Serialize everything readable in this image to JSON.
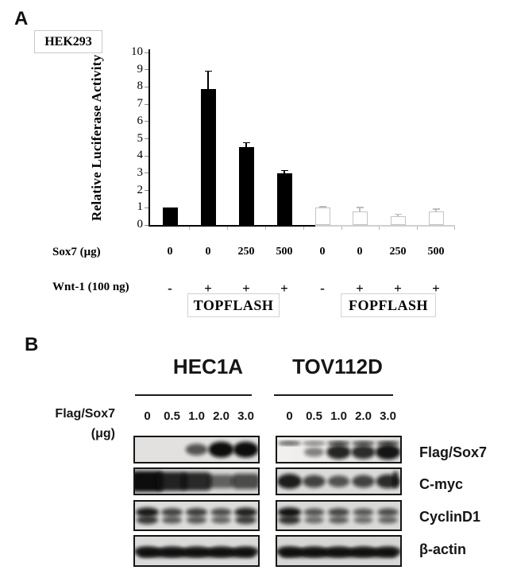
{
  "panel_a": {
    "label": "A",
    "cell_line": "HEK293",
    "chart_data": {
      "type": "bar",
      "title": "",
      "ylabel": "Relative Luciferase Activity",
      "xlabel": "",
      "ylim": [
        0,
        10
      ],
      "yticks": [
        0,
        1,
        2,
        3,
        4,
        5,
        6,
        7,
        8,
        9,
        10
      ],
      "grid": false,
      "legend": "none",
      "groups": [
        {
          "name": "TOPFLASH",
          "fill": "#000000",
          "values": [
            1.0,
            7.9,
            4.5,
            3.0
          ],
          "errors": [
            0,
            1.0,
            0.25,
            0.15
          ]
        },
        {
          "name": "FOPFLASH",
          "fill": "#ffffff",
          "values": [
            1.0,
            0.8,
            0.5,
            0.8
          ],
          "errors": [
            0.05,
            0.2,
            0.1,
            0.1
          ]
        }
      ],
      "x_rows": [
        {
          "label": "Sox7 (μg)",
          "values": [
            "0",
            "0",
            "250",
            "500",
            "0",
            "0",
            "250",
            "500"
          ]
        },
        {
          "label": "Wnt-1 (100 ng)",
          "values": [
            "-",
            "+",
            "+",
            "+",
            "-",
            "+",
            "+",
            "+"
          ]
        }
      ]
    }
  },
  "panel_b": {
    "label": "B",
    "cell_lines": [
      "HEC1A",
      "TOV112D"
    ],
    "dose_label": "Flag/Sox7",
    "dose_unit": "(μg)",
    "doses": [
      "0",
      "0.5",
      "1.0",
      "2.0",
      "3.0"
    ],
    "band_color": "#0a0a0a",
    "rows": [
      {
        "protein": "Flag/Sox7",
        "blots": [
          {
            "panel": "HEC1A",
            "bg": "#e2e1df",
            "style": "bands",
            "lanes": [
              0,
              0,
              0.55,
              1,
              1
            ]
          },
          {
            "panel": "TOV112D",
            "bg": "#f2f1ef",
            "bg2": "#e0dfdd",
            "style": "bands_top",
            "lanes": [
              0,
              0.3,
              0.85,
              0.8,
              0.95
            ],
            "top": [
              0.75,
              0.55,
              0.9,
              0.85,
              0.9
            ]
          }
        ]
      },
      {
        "protein": "C-myc",
        "blots": [
          {
            "panel": "HEC1A",
            "bg": "#d7d7d5",
            "style": "smear",
            "lanes": [
              1,
              0.85,
              0.8,
              0.4,
              0.55
            ]
          },
          {
            "panel": "TOV112D",
            "bg": "#dbdbd9",
            "style": "bands",
            "lanes": [
              0.9,
              0.65,
              0.55,
              0.65,
              0.8
            ],
            "right_streak": 0.9
          }
        ]
      },
      {
        "protein": "CyclinD1",
        "blots": [
          {
            "panel": "HEC1A",
            "bg": "#dcdcda",
            "style": "doublet",
            "lanes": [
              0.9,
              0.62,
              0.65,
              0.55,
              0.85
            ]
          },
          {
            "panel": "TOV112D",
            "bg": "#d9d9d7",
            "style": "doublet",
            "lanes": [
              0.95,
              0.5,
              0.6,
              0.48,
              0.55
            ]
          }
        ]
      },
      {
        "protein": "β-actin",
        "blots": [
          {
            "panel": "HEC1A",
            "bg": "#dadad8",
            "style": "solid",
            "lanes": [
              1,
              0.95,
              0.95,
              0.95,
              0.95
            ]
          },
          {
            "panel": "TOV112D",
            "bg": "#d6d6d4",
            "style": "solid",
            "lanes": [
              1,
              0.95,
              0.95,
              0.95,
              0.95
            ]
          }
        ]
      }
    ]
  }
}
